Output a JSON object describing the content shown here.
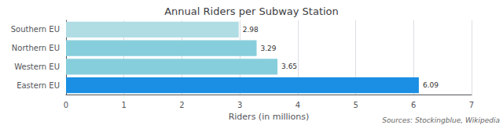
{
  "chart_data": {
    "type": "bar",
    "orientation": "horizontal",
    "title": "Annual Riders per Subway Station",
    "categories": [
      "Eastern EU",
      "Western EU",
      "Northern EU",
      "Southern EU"
    ],
    "values": [
      6.09,
      3.65,
      3.29,
      2.98
    ],
    "colors": [
      "#1a8fe3",
      "#87cedc",
      "#87cedc",
      "#b0dde4"
    ],
    "xlabel": "Riders (in millions)",
    "xlim": [
      0,
      7
    ],
    "xticks": [
      0,
      1,
      2,
      3,
      4,
      5,
      6,
      7
    ],
    "grid": true,
    "data_labels": true,
    "annotation": "Sources: Stockingblue, Wikipedia"
  }
}
